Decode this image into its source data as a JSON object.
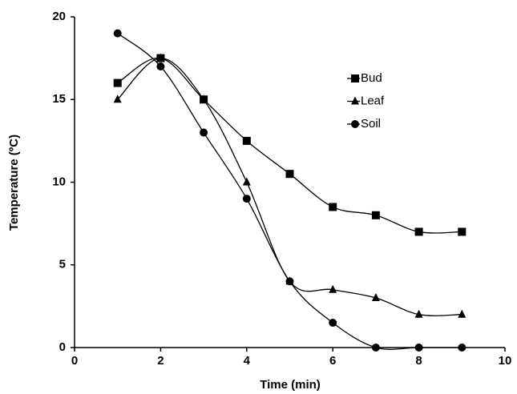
{
  "chart_data": {
    "type": "line",
    "x": [
      1,
      2,
      3,
      4,
      5,
      6,
      7,
      8,
      9
    ],
    "series": [
      {
        "name": "Bud",
        "color": "#000000",
        "marker": "square",
        "values": [
          16,
          17.5,
          15,
          12.5,
          10.5,
          8.5,
          8,
          7,
          7
        ]
      },
      {
        "name": "Leaf",
        "color": "#000000",
        "marker": "triangle",
        "values": [
          15,
          17.5,
          15,
          10,
          4,
          3.5,
          3,
          2,
          2
        ]
      },
      {
        "name": "Soil",
        "color": "#000000",
        "marker": "circle",
        "values": [
          19,
          17,
          13,
          9,
          4,
          1.5,
          0,
          0,
          0
        ]
      }
    ],
    "xlabel": "Time (min)",
    "ylabel": "Temperature (ºC)",
    "xlim": [
      0,
      10
    ],
    "xticks": [
      0,
      2,
      4,
      6,
      8,
      10
    ],
    "ylim": [
      0,
      20
    ],
    "yticks": [
      0,
      5,
      10,
      15,
      20
    ],
    "smooth": true,
    "legend": "upper right"
  }
}
